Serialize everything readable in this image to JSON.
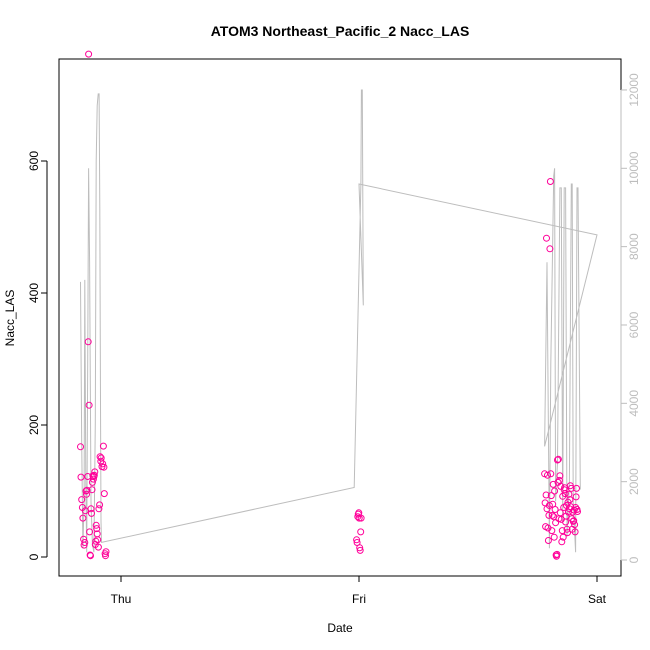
{
  "chart_data": {
    "type": "scatter",
    "title": "ATOM3 Northeast_Pacific_2 Nacc_LAS",
    "xlabel": "Date",
    "ylabel": "Nacc_LAS",
    "x_ticks": [
      "Thu",
      "Fri",
      "Sat"
    ],
    "ylim": [
      0,
      760
    ],
    "y_ticks": [
      0,
      200,
      400,
      600
    ],
    "y2lim": [
      0,
      12000
    ],
    "y2_ticks": [
      0,
      2000,
      4000,
      6000,
      8000,
      10000,
      12000
    ],
    "grid": false,
    "colors": {
      "points": "#ff0099",
      "altitude_line": "#bdbdbd",
      "axis": "#000000",
      "right_axis": "#bdbdbd"
    },
    "series": [
      {
        "axis": "left",
        "style": "points",
        "points": [
          [
            -0.17,
            167
          ],
          [
            -0.168,
            121
          ],
          [
            -0.165,
            87
          ],
          [
            -0.162,
            75
          ],
          [
            -0.16,
            59
          ],
          [
            -0.157,
            27
          ],
          [
            -0.155,
            18
          ],
          [
            -0.152,
            22
          ],
          [
            -0.15,
            70
          ],
          [
            -0.147,
            100
          ],
          [
            -0.145,
            95
          ],
          [
            -0.143,
            101
          ],
          [
            -0.14,
            122
          ],
          [
            -0.138,
            326
          ],
          [
            -0.136,
            762
          ],
          [
            -0.134,
            230
          ],
          [
            -0.132,
            38
          ],
          [
            -0.13,
            3
          ],
          [
            -0.128,
            2
          ],
          [
            -0.126,
            73
          ],
          [
            -0.124,
            66
          ],
          [
            -0.122,
            102
          ],
          [
            -0.12,
            113
          ],
          [
            -0.118,
            123
          ],
          [
            -0.116,
            118
          ],
          [
            -0.114,
            122
          ],
          [
            -0.112,
            124
          ],
          [
            -0.11,
            129
          ],
          [
            -0.108,
            19
          ],
          [
            -0.106,
            24
          ],
          [
            -0.104,
            48
          ],
          [
            -0.102,
            43
          ],
          [
            -0.1,
            35
          ],
          [
            -0.098,
            26
          ],
          [
            -0.095,
            15
          ],
          [
            -0.093,
            73
          ],
          [
            -0.09,
            79
          ],
          [
            -0.088,
            152
          ],
          [
            -0.085,
            145
          ],
          [
            -0.083,
            150
          ],
          [
            -0.08,
            137
          ],
          [
            -0.077,
            141
          ],
          [
            -0.074,
            168
          ],
          [
            -0.072,
            136
          ],
          [
            -0.07,
            96
          ],
          [
            -0.067,
            5
          ],
          [
            -0.065,
            2
          ],
          [
            -0.063,
            8
          ],
          [
            0.99,
            26
          ],
          [
            0.992,
            22
          ],
          [
            0.995,
            61
          ],
          [
            0.997,
            65
          ],
          [
            0.999,
            67
          ],
          [
            1.001,
            59
          ],
          [
            1.003,
            14
          ],
          [
            1.005,
            10
          ],
          [
            1.007,
            38
          ],
          [
            1.009,
            59
          ],
          [
            1.78,
            126
          ],
          [
            1.782,
            82
          ],
          [
            1.784,
            46
          ],
          [
            1.786,
            94
          ],
          [
            1.788,
            483
          ],
          [
            1.79,
            73
          ],
          [
            1.792,
            124
          ],
          [
            1.794,
            44
          ],
          [
            1.796,
            25
          ],
          [
            1.798,
            63
          ],
          [
            1.8,
            78
          ],
          [
            1.802,
            467
          ],
          [
            1.804,
            569
          ],
          [
            1.806,
            126
          ],
          [
            1.808,
            93
          ],
          [
            1.81,
            40
          ],
          [
            1.812,
            63
          ],
          [
            1.814,
            80
          ],
          [
            1.816,
            110
          ],
          [
            1.818,
            61
          ],
          [
            1.82,
            30
          ],
          [
            1.822,
            100
          ],
          [
            1.824,
            72
          ],
          [
            1.826,
            52
          ],
          [
            1.828,
            3
          ],
          [
            1.83,
            1
          ],
          [
            1.832,
            4
          ],
          [
            1.834,
            147
          ],
          [
            1.836,
            113
          ],
          [
            1.838,
            148
          ],
          [
            1.84,
            58
          ],
          [
            1.842,
            116
          ],
          [
            1.844,
            123
          ],
          [
            1.846,
            67
          ],
          [
            1.848,
            107
          ],
          [
            1.85,
            57
          ],
          [
            1.852,
            23
          ],
          [
            1.854,
            40
          ],
          [
            1.856,
            92
          ],
          [
            1.858,
            30
          ],
          [
            1.86,
            75
          ],
          [
            1.862,
            102
          ],
          [
            1.864,
            105
          ],
          [
            1.866,
            96
          ],
          [
            1.868,
            53
          ],
          [
            1.87,
            62
          ],
          [
            1.872,
            78
          ],
          [
            1.874,
            42
          ],
          [
            1.876,
            37
          ],
          [
            1.878,
            83
          ],
          [
            1.88,
            68
          ],
          [
            1.882,
            95
          ],
          [
            1.884,
            73
          ],
          [
            1.886,
            87
          ],
          [
            1.888,
            108
          ],
          [
            1.89,
            76
          ],
          [
            1.892,
            104
          ],
          [
            1.894,
            58
          ],
          [
            1.896,
            42
          ],
          [
            1.898,
            68
          ],
          [
            1.9,
            54
          ],
          [
            1.902,
            55
          ],
          [
            1.904,
            71
          ],
          [
            1.906,
            49
          ],
          [
            1.908,
            38
          ],
          [
            1.91,
            75
          ],
          [
            1.912,
            91
          ],
          [
            1.914,
            104
          ],
          [
            1.916,
            72
          ],
          [
            1.918,
            69
          ]
        ]
      },
      {
        "axis": "right",
        "style": "line",
        "points": [
          [
            -0.17,
            7100
          ],
          [
            -0.165,
            3000
          ],
          [
            -0.16,
            300
          ],
          [
            -0.155,
            1500
          ],
          [
            -0.152,
            7150
          ],
          [
            -0.148,
            2000
          ],
          [
            -0.144,
            200
          ],
          [
            -0.14,
            5000
          ],
          [
            -0.136,
            10000
          ],
          [
            -0.132,
            7600
          ],
          [
            -0.126,
            1500
          ],
          [
            -0.12,
            400
          ],
          [
            -0.114,
            200
          ],
          [
            -0.108,
            3500
          ],
          [
            -0.104,
            10200
          ],
          [
            -0.1,
            11600
          ],
          [
            -0.096,
            11900
          ],
          [
            -0.092,
            11900
          ],
          [
            -0.089,
            9000
          ],
          [
            -0.086,
            4000
          ],
          [
            -0.084,
            1000
          ],
          [
            -0.082,
            450
          ],
          [
            0.98,
            1850
          ],
          [
            1.008,
            9600
          ],
          [
            1.01,
            12000
          ],
          [
            1.014,
            12000
          ],
          [
            1.018,
            6500
          ],
          [
            1.0,
            9600
          ],
          [
            2.0,
            8300
          ],
          [
            1.78,
            2900
          ],
          [
            1.79,
            7600
          ],
          [
            1.8,
            300
          ],
          [
            1.806,
            5000
          ],
          [
            1.818,
            9800
          ],
          [
            1.822,
            10000
          ],
          [
            1.826,
            1500
          ],
          [
            1.834,
            2500
          ],
          [
            1.844,
            9500
          ],
          [
            1.85,
            9500
          ],
          [
            1.856,
            1000
          ],
          [
            1.862,
            9500
          ],
          [
            1.868,
            9500
          ],
          [
            1.874,
            600
          ],
          [
            1.884,
            2000
          ],
          [
            1.892,
            9600
          ],
          [
            1.896,
            9600
          ],
          [
            1.9,
            1500
          ],
          [
            1.91,
            200
          ],
          [
            1.916,
            9500
          ],
          [
            1.92,
            9500
          ],
          [
            1.93,
            1800
          ]
        ]
      }
    ]
  }
}
